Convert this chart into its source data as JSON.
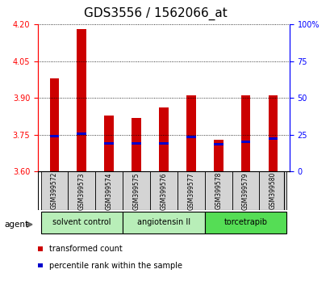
{
  "title": "GDS3556 / 1562066_at",
  "samples": [
    "GSM399572",
    "GSM399573",
    "GSM399574",
    "GSM399575",
    "GSM399576",
    "GSM399577",
    "GSM399578",
    "GSM399579",
    "GSM399580"
  ],
  "transformed_counts": [
    3.98,
    4.18,
    3.83,
    3.82,
    3.86,
    3.91,
    3.73,
    3.91,
    3.91
  ],
  "percentile_ranks": [
    3.745,
    3.755,
    3.715,
    3.715,
    3.715,
    3.74,
    3.71,
    3.72,
    3.735
  ],
  "y_min": 3.6,
  "y_max": 4.2,
  "y_ticks": [
    3.6,
    3.75,
    3.9,
    4.05,
    4.2
  ],
  "y2_ticks": [
    0,
    25,
    50,
    75,
    100
  ],
  "bar_color": "#cc0000",
  "percentile_color": "#0000cc",
  "bar_width": 0.35,
  "groups": [
    {
      "label": "solvent control",
      "indices": [
        0,
        1,
        2
      ],
      "color": "#b8eeb8"
    },
    {
      "label": "angiotensin II",
      "indices": [
        3,
        4,
        5
      ],
      "color": "#b8eeb8"
    },
    {
      "label": "torcetrapib",
      "indices": [
        6,
        7,
        8
      ],
      "color": "#55dd55"
    }
  ],
  "legend_items": [
    {
      "label": "transformed count",
      "color": "#cc0000"
    },
    {
      "label": "percentile rank within the sample",
      "color": "#0000cc"
    }
  ],
  "agent_label": "agent",
  "title_fontsize": 11,
  "tick_fontsize": 7,
  "sample_fontsize": 5.5,
  "group_fontsize": 7,
  "legend_fontsize": 7
}
